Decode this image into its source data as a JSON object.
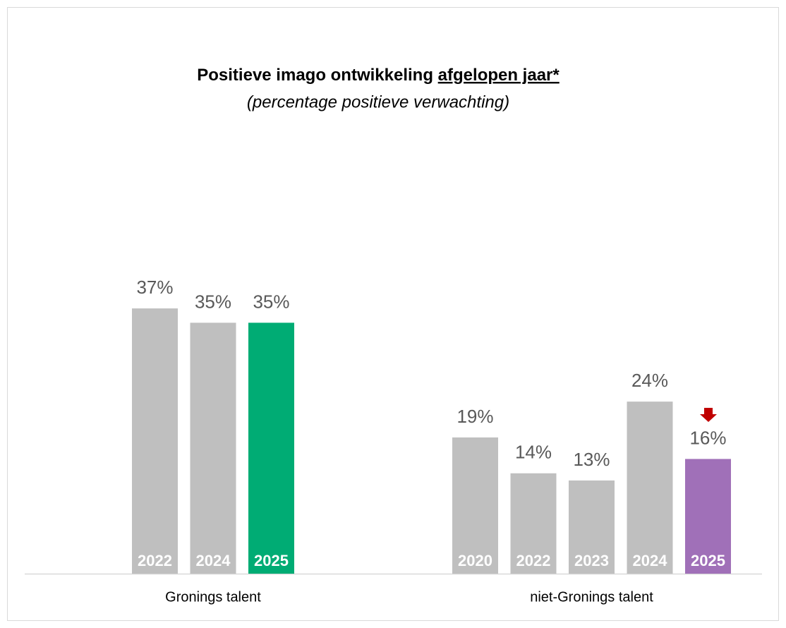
{
  "chart_data": {
    "type": "bar",
    "title": [
      "Positieve imago ontwikkeling",
      "afgelopen jaar*"
    ],
    "subtitle": "(percentage positieve verwachting)",
    "groups": [
      {
        "name": "Gronings talent",
        "categories": [
          "2022",
          "2024",
          "2025"
        ],
        "values": [
          37,
          35,
          35
        ],
        "value_labels": [
          "37%",
          "35%",
          "35%"
        ],
        "colors": [
          "#bfbfbf",
          "#bfbfbf",
          "#00ac74"
        ]
      },
      {
        "name": "niet-Gronings talent",
        "categories": [
          "2020",
          "2022",
          "2023",
          "2024",
          "2025"
        ],
        "values": [
          19,
          14,
          13,
          24,
          16
        ],
        "value_labels": [
          "19%",
          "14%",
          "13%",
          "24%",
          "16%"
        ],
        "colors": [
          "#bfbfbf",
          "#bfbfbf",
          "#bfbfbf",
          "#bfbfbf",
          "#a070b8"
        ]
      }
    ]
  }
}
